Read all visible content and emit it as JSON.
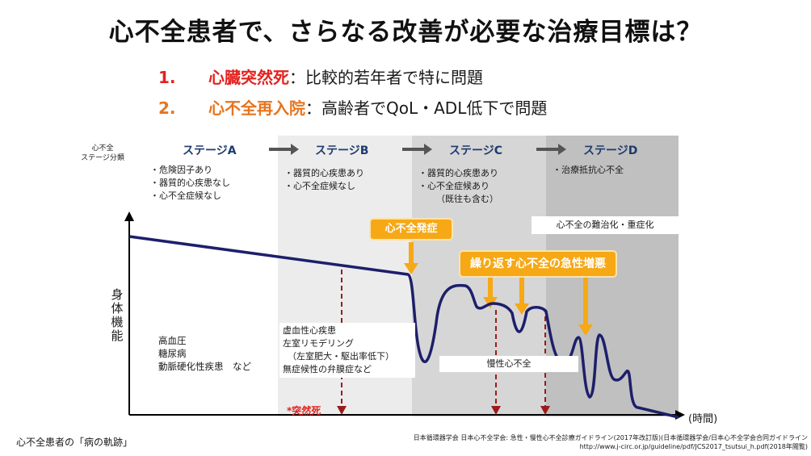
{
  "title": "心不全患者で、さらなる改善が必要な治療目標は？",
  "points": [
    {
      "num": "1.",
      "emph": "心臓突然死",
      "rest": "：比較的若年者で特に問題"
    },
    {
      "num": "2.",
      "emph": "心不全再入院",
      "rest": "：高齢者でQoL・ADL低下で問題"
    }
  ],
  "stage_heading": [
    "心不全",
    "ステージ分類"
  ],
  "stages": [
    {
      "label": "ステージA",
      "items": [
        "危険因子あり",
        "器質的心疾患なし",
        "心不全症候なし"
      ]
    },
    {
      "label": "ステージB",
      "items": [
        "器質的心疾患あり",
        "心不全症候なし"
      ]
    },
    {
      "label": "ステージC",
      "items": [
        "器質的心疾患あり",
        "心不全症候あり"
      ],
      "note": "（既往も含む）"
    },
    {
      "label": "ステージD",
      "items": [
        "治療抵抗心不全"
      ]
    }
  ],
  "y_axis_label": [
    "身",
    "体",
    "機",
    "能"
  ],
  "x_axis_label": "(時間)",
  "risk_factors": [
    "高血圧",
    "糖尿病",
    "動脈硬化性疾患　など"
  ],
  "stage_b_diseases": [
    "虚血性心疾患",
    "左室リモデリング",
    "（左室肥大・駆出率低下）",
    "無症候性の弁膜症など"
  ],
  "labels": {
    "onset": "心不全発症",
    "acute": "繰り返す心不全の急性増悪",
    "refractory": "心不全の難治化・重症化",
    "chronic": "慢性心不全",
    "sudden_death": "*突然死"
  },
  "caption": "心不全患者の「病の軌跡」",
  "source_line1": "日本循環器学会 日本心不全学会: 急性・慢性心不全診療ガイドライン(2017年改訂版)(日本循環器学会/日本心不全学会合同ガイドライン",
  "source_line2": "http://www.j-circ.or.jp/guideline/pdf/JCS2017_tsutsui_h.pdf(2018年閲覧)",
  "colors": {
    "red": "#e3231f",
    "orange_text": "#e8741d",
    "stage_blue": "#1f3b6d",
    "curve": "#1d1f6b",
    "arrow_orange": "#f6a815",
    "dashed": "#9b1b1b"
  }
}
